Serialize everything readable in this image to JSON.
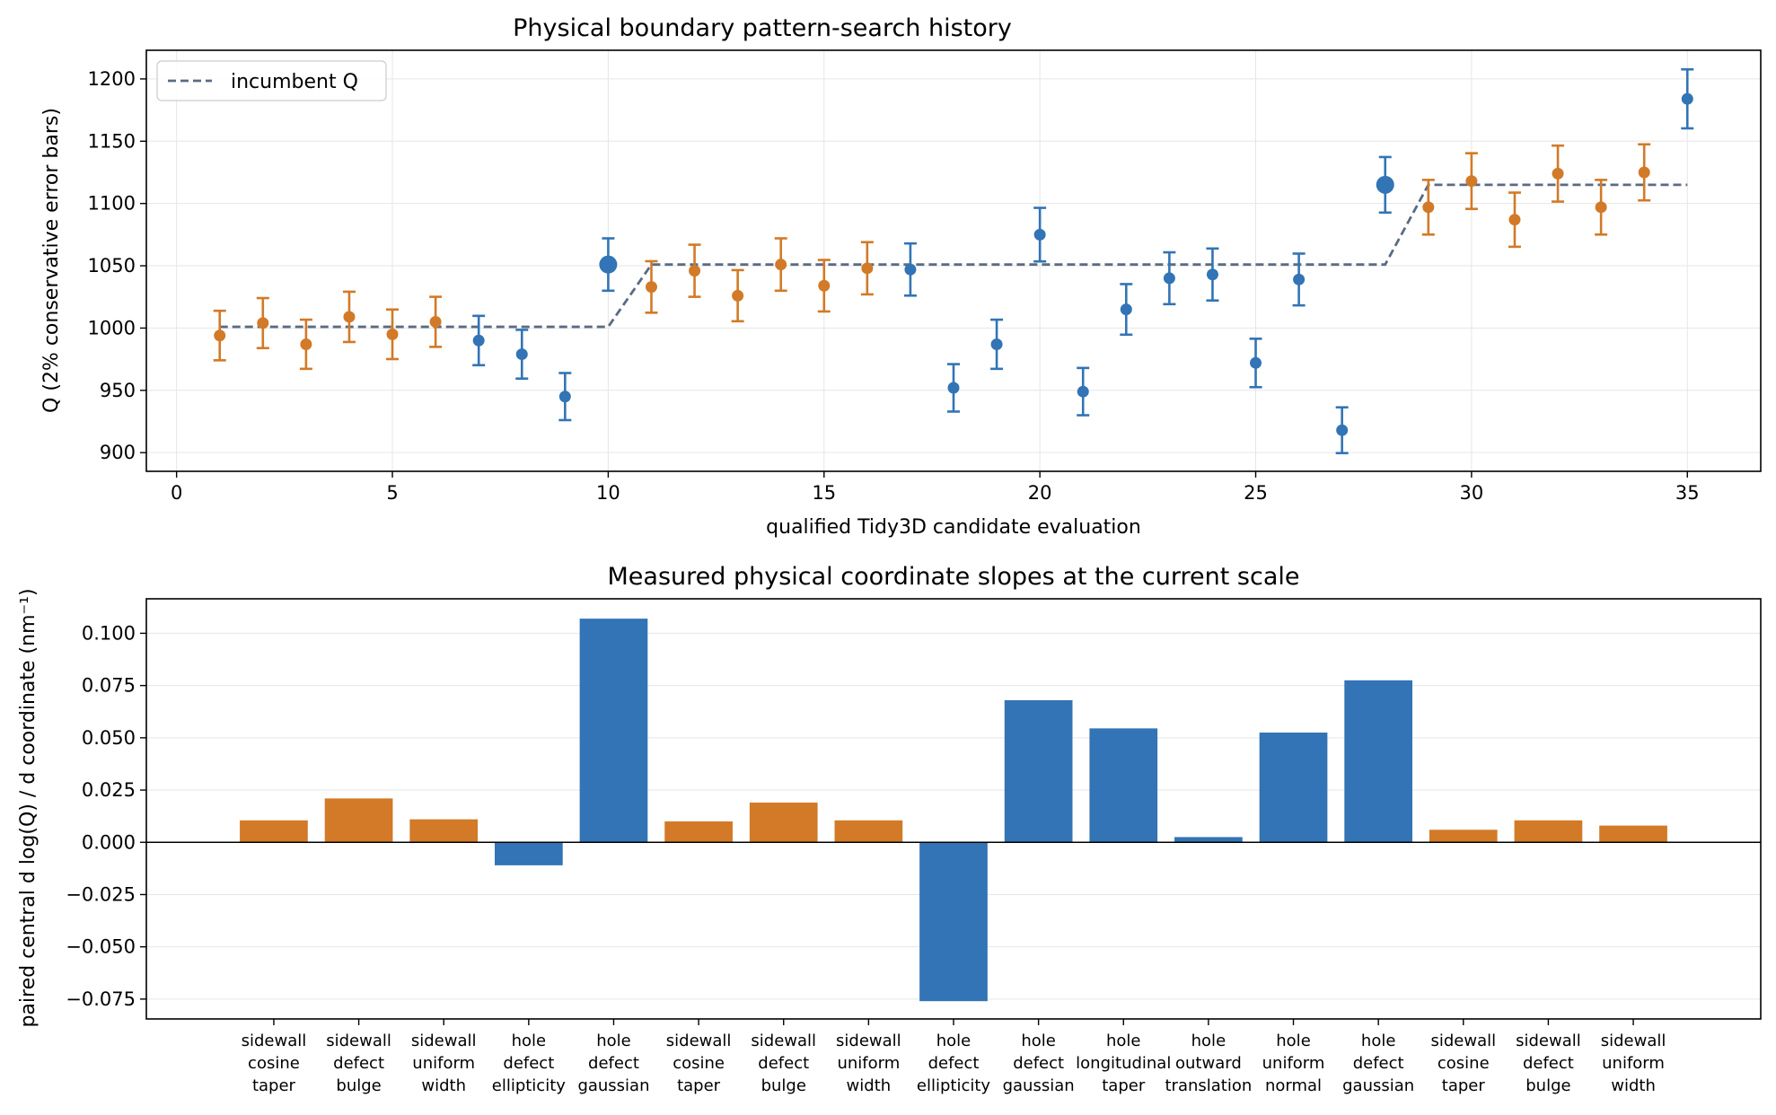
{
  "colors": {
    "blue": "#3274b5",
    "orange": "#d27a27",
    "incumbent": "#5b6b84",
    "grid": "#e6e6e6",
    "axis": "#000000"
  },
  "chart_data": [
    {
      "type": "scatter",
      "title": "Physical boundary pattern-search history",
      "xlabel": "qualified Tidy3D candidate evaluation",
      "ylabel": "Q (2% conservative error bars)",
      "xlim": [
        -0.7,
        36.7
      ],
      "ylim": [
        885,
        1223
      ],
      "xticks": [
        0,
        5,
        10,
        15,
        20,
        25,
        30,
        35
      ],
      "yticks": [
        900,
        950,
        1000,
        1050,
        1100,
        1150,
        1200
      ],
      "grid": true,
      "legend": {
        "position": "top-left",
        "entries": [
          "incumbent Q"
        ]
      },
      "error_fraction": 0.02,
      "points": [
        {
          "x": 1,
          "y": 994,
          "c": "orange"
        },
        {
          "x": 2,
          "y": 1004,
          "c": "orange"
        },
        {
          "x": 3,
          "y": 987,
          "c": "orange"
        },
        {
          "x": 4,
          "y": 1009,
          "c": "orange"
        },
        {
          "x": 5,
          "y": 995,
          "c": "orange"
        },
        {
          "x": 6,
          "y": 1005,
          "c": "orange"
        },
        {
          "x": 7,
          "y": 990,
          "c": "blue"
        },
        {
          "x": 8,
          "y": 979,
          "c": "blue"
        },
        {
          "x": 9,
          "y": 945,
          "c": "blue"
        },
        {
          "x": 10,
          "y": 1051,
          "c": "blue",
          "incumbent": true
        },
        {
          "x": 11,
          "y": 1033,
          "c": "orange"
        },
        {
          "x": 12,
          "y": 1046,
          "c": "orange"
        },
        {
          "x": 13,
          "y": 1026,
          "c": "orange"
        },
        {
          "x": 14,
          "y": 1051,
          "c": "orange"
        },
        {
          "x": 15,
          "y": 1034,
          "c": "orange"
        },
        {
          "x": 16,
          "y": 1048,
          "c": "orange"
        },
        {
          "x": 17,
          "y": 1047,
          "c": "blue"
        },
        {
          "x": 18,
          "y": 952,
          "c": "blue"
        },
        {
          "x": 19,
          "y": 987,
          "c": "blue"
        },
        {
          "x": 20,
          "y": 1075,
          "c": "blue"
        },
        {
          "x": 21,
          "y": 949,
          "c": "blue"
        },
        {
          "x": 22,
          "y": 1015,
          "c": "blue"
        },
        {
          "x": 23,
          "y": 1040,
          "c": "blue"
        },
        {
          "x": 24,
          "y": 1043,
          "c": "blue"
        },
        {
          "x": 25,
          "y": 972,
          "c": "blue"
        },
        {
          "x": 26,
          "y": 1039,
          "c": "blue"
        },
        {
          "x": 27,
          "y": 918,
          "c": "blue"
        },
        {
          "x": 28,
          "y": 1115,
          "c": "blue",
          "incumbent": true
        },
        {
          "x": 29,
          "y": 1097,
          "c": "orange"
        },
        {
          "x": 30,
          "y": 1118,
          "c": "orange"
        },
        {
          "x": 31,
          "y": 1087,
          "c": "orange"
        },
        {
          "x": 32,
          "y": 1124,
          "c": "orange"
        },
        {
          "x": 33,
          "y": 1097,
          "c": "orange"
        },
        {
          "x": 34,
          "y": 1125,
          "c": "orange"
        },
        {
          "x": 35,
          "y": 1184,
          "c": "blue"
        }
      ],
      "incumbent_line": {
        "name": "incumbent Q",
        "x": [
          1,
          10,
          11,
          28,
          29,
          35
        ],
        "y": [
          1001,
          1001,
          1051,
          1051,
          1115,
          1115
        ]
      }
    },
    {
      "type": "bar",
      "title": "Measured physical coordinate slopes at the current scale",
      "xlabel": "",
      "ylabel": "paired central d log(Q) / d coordinate (nm⁻¹)",
      "ylim": [
        -0.0845,
        0.1165
      ],
      "yticks": [
        -0.075,
        -0.05,
        -0.025,
        0.0,
        0.025,
        0.05,
        0.075,
        0.1
      ],
      "grid": true,
      "categories": [
        [
          "sidewall",
          "cosine",
          "taper"
        ],
        [
          "sidewall",
          "defect",
          "bulge"
        ],
        [
          "sidewall",
          "uniform",
          "width"
        ],
        [
          "hole",
          "defect",
          "ellipticity"
        ],
        [
          "hole",
          "defect",
          "gaussian"
        ],
        [
          "sidewall",
          "cosine",
          "taper"
        ],
        [
          "sidewall",
          "defect",
          "bulge"
        ],
        [
          "sidewall",
          "uniform",
          "width"
        ],
        [
          "hole",
          "defect",
          "ellipticity"
        ],
        [
          "hole",
          "defect",
          "gaussian"
        ],
        [
          "hole",
          "longitudinal",
          "taper"
        ],
        [
          "hole",
          "outward",
          "translation"
        ],
        [
          "hole",
          "uniform",
          "normal"
        ],
        [
          "hole",
          "defect",
          "gaussian"
        ],
        [
          "sidewall",
          "cosine",
          "taper"
        ],
        [
          "sidewall",
          "defect",
          "bulge"
        ],
        [
          "sidewall",
          "uniform",
          "width"
        ]
      ],
      "values": [
        0.0105,
        0.021,
        0.011,
        -0.011,
        0.107,
        0.01,
        0.019,
        0.0105,
        -0.076,
        0.068,
        0.0545,
        0.0025,
        0.0525,
        0.0775,
        0.006,
        0.0105,
        0.008
      ],
      "bar_colors": [
        "orange",
        "orange",
        "orange",
        "blue",
        "blue",
        "orange",
        "orange",
        "orange",
        "blue",
        "blue",
        "blue",
        "blue",
        "blue",
        "blue",
        "orange",
        "orange",
        "orange"
      ]
    }
  ]
}
